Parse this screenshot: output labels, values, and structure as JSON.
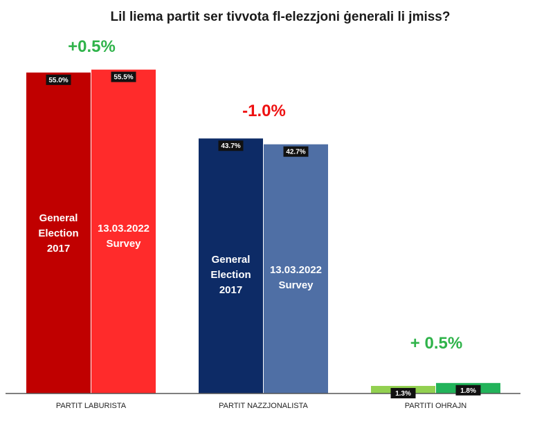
{
  "chart_data": {
    "type": "bar",
    "title": "Lil liema partit ser tivvota fl-elezzjoni ġenerali li jmiss?",
    "categories": [
      "PARTIT LABURISTA",
      "PARTIT NAZZJONALISTA",
      "PARTITI OHRAJN"
    ],
    "series": [
      {
        "label_lines": [
          "General",
          "Election",
          "2017"
        ],
        "values": [
          55.0,
          43.7,
          1.3
        ],
        "value_labels": [
          "55.0%",
          "43.7%",
          "1.3%"
        ],
        "colors": [
          "#c00000",
          "#0d2b66",
          "#92d050"
        ]
      },
      {
        "label_lines": [
          "13.03.2022",
          "Survey"
        ],
        "values": [
          55.5,
          42.7,
          1.8
        ],
        "value_labels": [
          "55.5%",
          "42.7%",
          "1.8%"
        ],
        "colors": [
          "#ff2b2b",
          "#4f6fa5",
          "#22b35a"
        ]
      }
    ],
    "changes": [
      {
        "text": "+0.5%",
        "color": "#2fb34a"
      },
      {
        "text": "-1.0%",
        "color": "#ee1111"
      },
      {
        "text": "+ 0.5%",
        "color": "#2fb34a"
      }
    ],
    "ylim": [
      0,
      57
    ],
    "grid": false,
    "legend": "none"
  }
}
